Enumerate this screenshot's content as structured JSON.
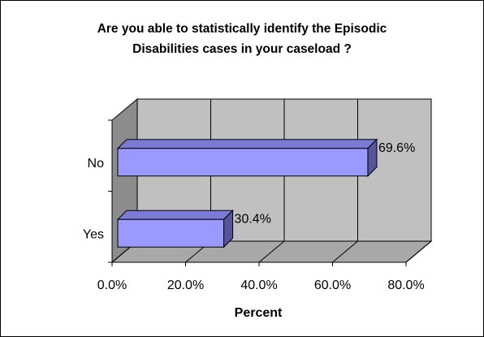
{
  "chart_data": {
    "type": "bar",
    "orientation": "horizontal",
    "style": "3d",
    "title": "Are you able to statistically identify the Episodic Disabilities cases in your caseload ?",
    "title_lines": [
      "Are you able to statistically identify the Episodic",
      "Disabilities cases in your caseload ?"
    ],
    "categories": [
      "No",
      "Yes"
    ],
    "values": [
      69.6,
      30.4
    ],
    "value_labels": [
      "69.6%",
      "30.4%"
    ],
    "xlabel": "Percent",
    "ylabel": "",
    "xlim": [
      0,
      80
    ],
    "x_ticks": [
      "0.0%",
      "20.0%",
      "40.0%",
      "60.0%",
      "80.0%"
    ],
    "grid": true,
    "legend": "none",
    "colors": {
      "bar_front": "#9999ff",
      "bar_top": "#7b7bd6",
      "bar_side": "#55559a",
      "wall": "#c0c0c0",
      "side_wall": "#8c8c8c",
      "floor": "#a8a8a8"
    }
  }
}
